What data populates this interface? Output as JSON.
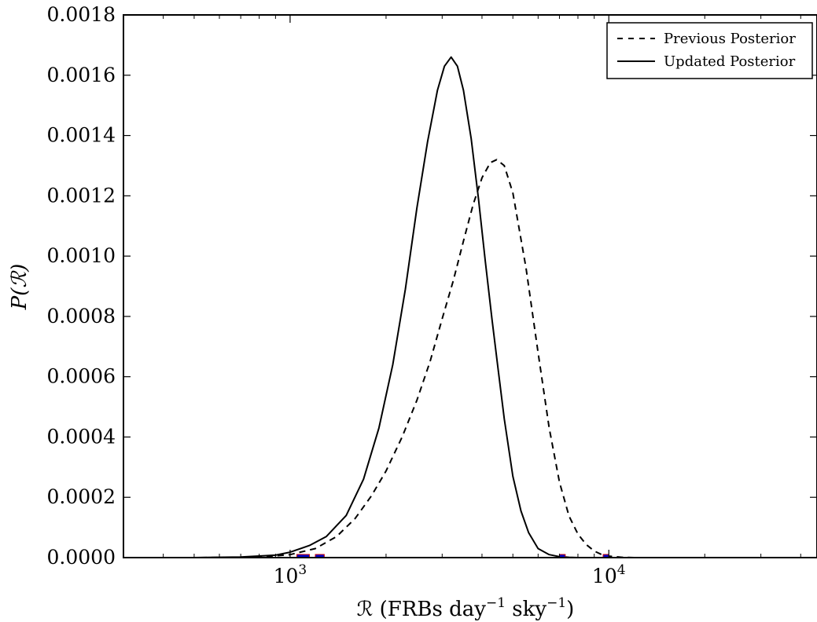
{
  "chart_data": {
    "type": "line",
    "xscale": "log",
    "xlim": [
      300,
      45000
    ],
    "ylim": [
      0,
      0.0018
    ],
    "xlabel": {
      "main": "ℛ (FRBs day",
      "exp1": "−1",
      "mid": " sky",
      "exp2": "−1",
      "end": ")"
    },
    "ylabel": "P(ℛ)",
    "y_ticks": [
      "0.0000",
      "0.0002",
      "0.0004",
      "0.0006",
      "0.0008",
      "0.0010",
      "0.0012",
      "0.0014",
      "0.0016",
      "0.0018"
    ],
    "x_ticks": [
      {
        "value": 1000,
        "base": "10",
        "exp": "3"
      },
      {
        "value": 10000,
        "base": "10",
        "exp": "4"
      }
    ],
    "legend": {
      "placement": "top-right",
      "entries": [
        "Previous Posterior",
        "Updated Posterior"
      ]
    },
    "grid": false,
    "series": [
      {
        "name": "Previous Posterior",
        "style": "dashed",
        "color": "#000000",
        "x": [
          300,
          500,
          700,
          900,
          1000,
          1200,
          1400,
          1600,
          1800,
          2000,
          2250,
          2500,
          2750,
          3000,
          3250,
          3500,
          3750,
          4000,
          4250,
          4450,
          4700,
          5000,
          5500,
          6000,
          6500,
          7000,
          7500,
          8000,
          8500,
          9000,
          9500,
          10000,
          11000,
          12000,
          15000,
          20000,
          30000,
          45000
        ],
        "y": [
          0,
          0,
          1e-06,
          6e-06,
          1e-05,
          3e-05,
          7e-05,
          0.00013,
          0.000205,
          0.000287,
          0.000402,
          0.000522,
          0.000651,
          0.000792,
          0.000918,
          0.00105,
          0.00117,
          0.00126,
          0.00131,
          0.00132,
          0.0013,
          0.00121,
          0.00096,
          0.00068,
          0.00043,
          0.00025,
          0.000138,
          7.8e-05,
          4.3e-05,
          2.2e-05,
          1e-05,
          5e-06,
          1e-06,
          0,
          0,
          0,
          0,
          0
        ]
      },
      {
        "name": "Updated Posterior",
        "style": "solid",
        "color": "#000000",
        "x": [
          300,
          500,
          700,
          900,
          1000,
          1150,
          1300,
          1500,
          1700,
          1900,
          2100,
          2300,
          2500,
          2700,
          2900,
          3050,
          3200,
          3350,
          3500,
          3700,
          3900,
          4100,
          4300,
          4500,
          4700,
          5000,
          5300,
          5600,
          6000,
          6500,
          7000,
          7500,
          8000,
          9000,
          10000,
          12000,
          20000,
          45000
        ],
        "y": [
          0,
          0,
          2e-06,
          8e-06,
          1.8e-05,
          4e-05,
          7e-05,
          0.00014,
          0.00026,
          0.00043,
          0.00064,
          0.00089,
          0.00116,
          0.00138,
          0.00155,
          0.00163,
          0.00166,
          0.00163,
          0.00155,
          0.00139,
          0.00119,
          0.00098,
          0.00079,
          0.00062,
          0.00046,
          0.00027,
          0.000155,
          8.3e-05,
          3e-05,
          1e-05,
          3e-06,
          1e-06,
          0,
          0,
          0,
          0,
          0,
          0
        ]
      }
    ],
    "colors": {
      "interval_fill": "#0000cc",
      "interval_edge": "#cc0000"
    }
  }
}
